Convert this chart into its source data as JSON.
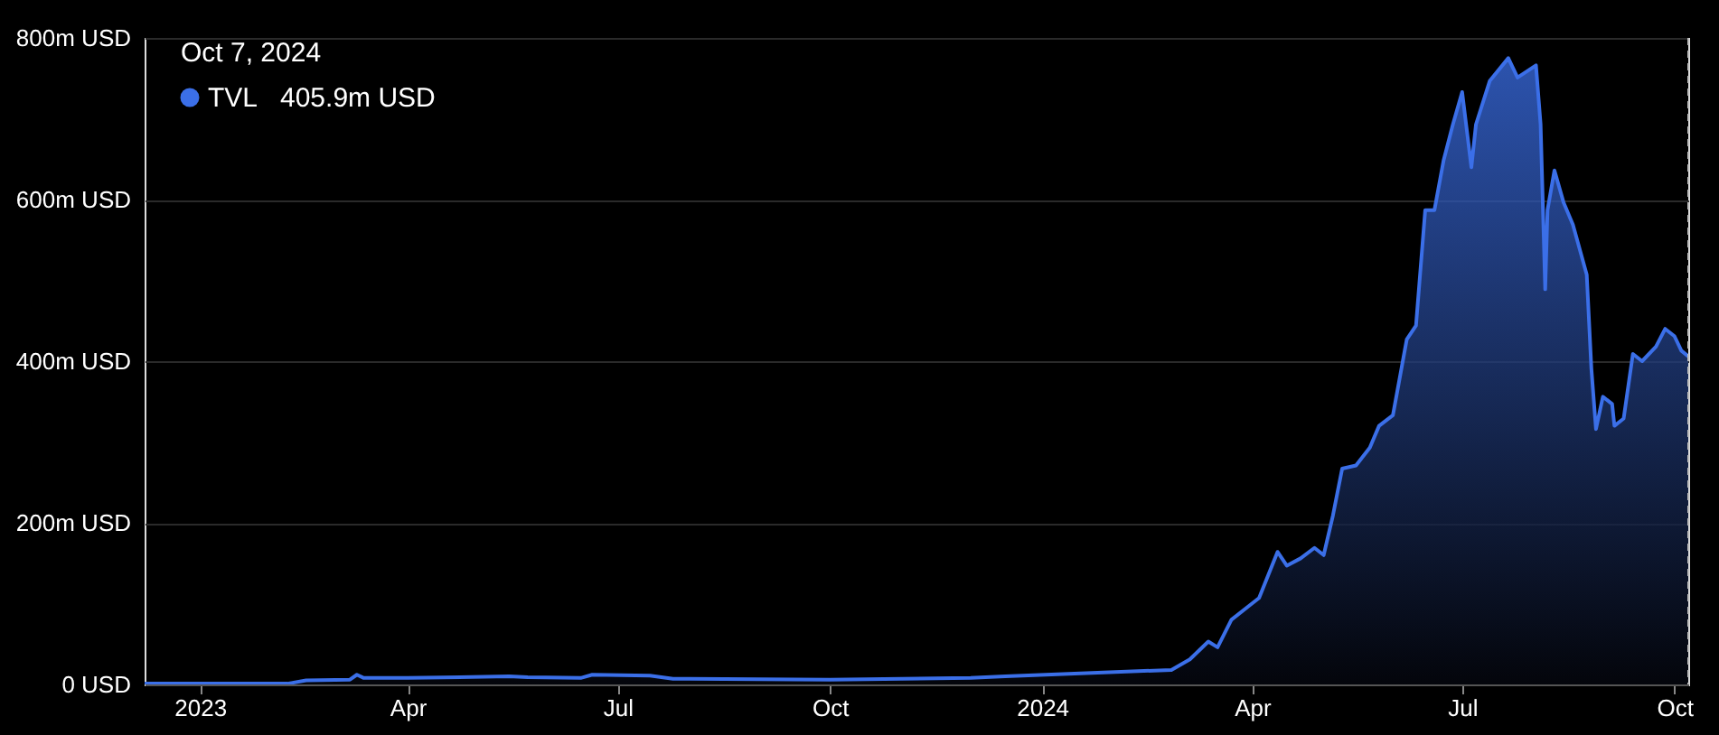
{
  "chart_data": {
    "type": "area",
    "x": [
      "2022-12-08",
      "2023-02-08",
      "2023-02-16",
      "2023-03-07",
      "2023-03-10",
      "2023-03-13",
      "2023-04-01",
      "2023-05-15",
      "2023-05-23",
      "2023-06-15",
      "2023-06-20",
      "2023-07-15",
      "2023-07-25",
      "2023-10-01",
      "2023-12-01",
      "2023-12-16",
      "2024-02-26",
      "2024-03-05",
      "2024-03-13",
      "2024-03-17",
      "2024-03-23",
      "2024-03-31",
      "2024-04-04",
      "2024-04-12",
      "2024-04-16",
      "2024-04-22",
      "2024-04-28",
      "2024-05-02",
      "2024-05-06",
      "2024-05-10",
      "2024-05-16",
      "2024-05-22",
      "2024-05-26",
      "2024-06-01",
      "2024-06-07",
      "2024-06-11",
      "2024-06-15",
      "2024-06-19",
      "2024-06-23",
      "2024-06-27",
      "2024-07-01",
      "2024-07-05",
      "2024-07-07",
      "2024-07-13",
      "2024-07-21",
      "2024-07-25",
      "2024-08-02",
      "2024-08-04",
      "2024-08-06",
      "2024-08-07",
      "2024-08-10",
      "2024-08-14",
      "2024-08-18",
      "2024-08-24",
      "2024-08-26",
      "2024-08-28",
      "2024-08-31",
      "2024-09-04",
      "2024-09-05",
      "2024-09-09",
      "2024-09-13",
      "2024-09-17",
      "2024-09-23",
      "2024-09-27",
      "2024-10-01",
      "2024-10-04",
      "2024-10-07"
    ],
    "series": [
      {
        "name": "TVL",
        "color": "#3b6fe8",
        "values": [
          1,
          1,
          5,
          6,
          12,
          8,
          8,
          10,
          9,
          8,
          12,
          11,
          7,
          6,
          8,
          10,
          18,
          31,
          53,
          46,
          80,
          98,
          107,
          164,
          147,
          156,
          169,
          160,
          209,
          267,
          271,
          293,
          320,
          333,
          427,
          444,
          587,
          587,
          649,
          693,
          733,
          640,
          693,
          747,
          775,
          751,
          766,
          693,
          489,
          587,
          636,
          596,
          569,
          507,
          391,
          316,
          356,
          347,
          320,
          329,
          409,
          400,
          418,
          440,
          431,
          413,
          406
        ]
      }
    ],
    "xlim": [
      "2022-12-08",
      "2024-10-07"
    ],
    "xticks": [
      {
        "value": "2023-01-01",
        "label": "2023"
      },
      {
        "value": "2023-04-01",
        "label": "Apr"
      },
      {
        "value": "2023-07-01",
        "label": "Jul"
      },
      {
        "value": "2023-10-01",
        "label": "Oct"
      },
      {
        "value": "2024-01-01",
        "label": "2024"
      },
      {
        "value": "2024-04-01",
        "label": "Apr"
      },
      {
        "value": "2024-07-01",
        "label": "Jul"
      },
      {
        "value": "2024-10-01",
        "label": "Oct"
      }
    ],
    "ylim": [
      0,
      800
    ],
    "yticks": [
      {
        "value": 0,
        "label": "0 USD"
      },
      {
        "value": 200,
        "label": "200m USD"
      },
      {
        "value": 400,
        "label": "400m USD"
      },
      {
        "value": 600,
        "label": "600m USD"
      },
      {
        "value": 800,
        "label": "800m USD"
      }
    ],
    "grid": "y",
    "legend": "top left",
    "annotations": [
      "Oct 7, 2024",
      "405.9m USD"
    ],
    "ref_lines": [
      {
        "axis": "x",
        "value": "2024-10-07",
        "color": "#bbbbbb",
        "line_style": "dashed"
      }
    ]
  }
}
